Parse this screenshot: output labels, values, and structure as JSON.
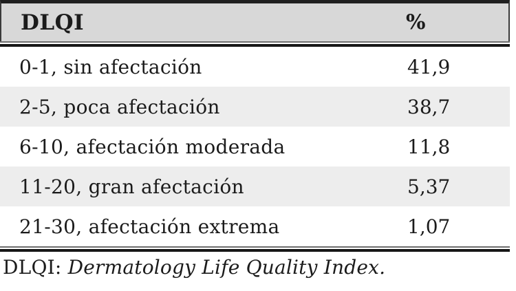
{
  "colors": {
    "header_bg": "#d8d8d8",
    "stripe_bg": "#ededed",
    "text": "#1b1b1b",
    "rule_dark": "#161616",
    "rule_light": "#6e6e6e"
  },
  "table": {
    "header": {
      "col1": "DLQI",
      "col2": "%"
    },
    "rows": [
      {
        "label": "0-1, sin afectación",
        "value": "41,9"
      },
      {
        "label": "2-5, poca afectación",
        "value": "38,7"
      },
      {
        "label": "6-10, afectación moderada",
        "value": "11,8"
      },
      {
        "label": "11-20, gran afectación",
        "value": "5,37"
      },
      {
        "label": "21-30, afectación extrema",
        "value": "1,07"
      }
    ]
  },
  "footnote": {
    "abbreviation": "DLQI",
    "separator": ": ",
    "definition": "Dermatology Life Quality Index."
  }
}
